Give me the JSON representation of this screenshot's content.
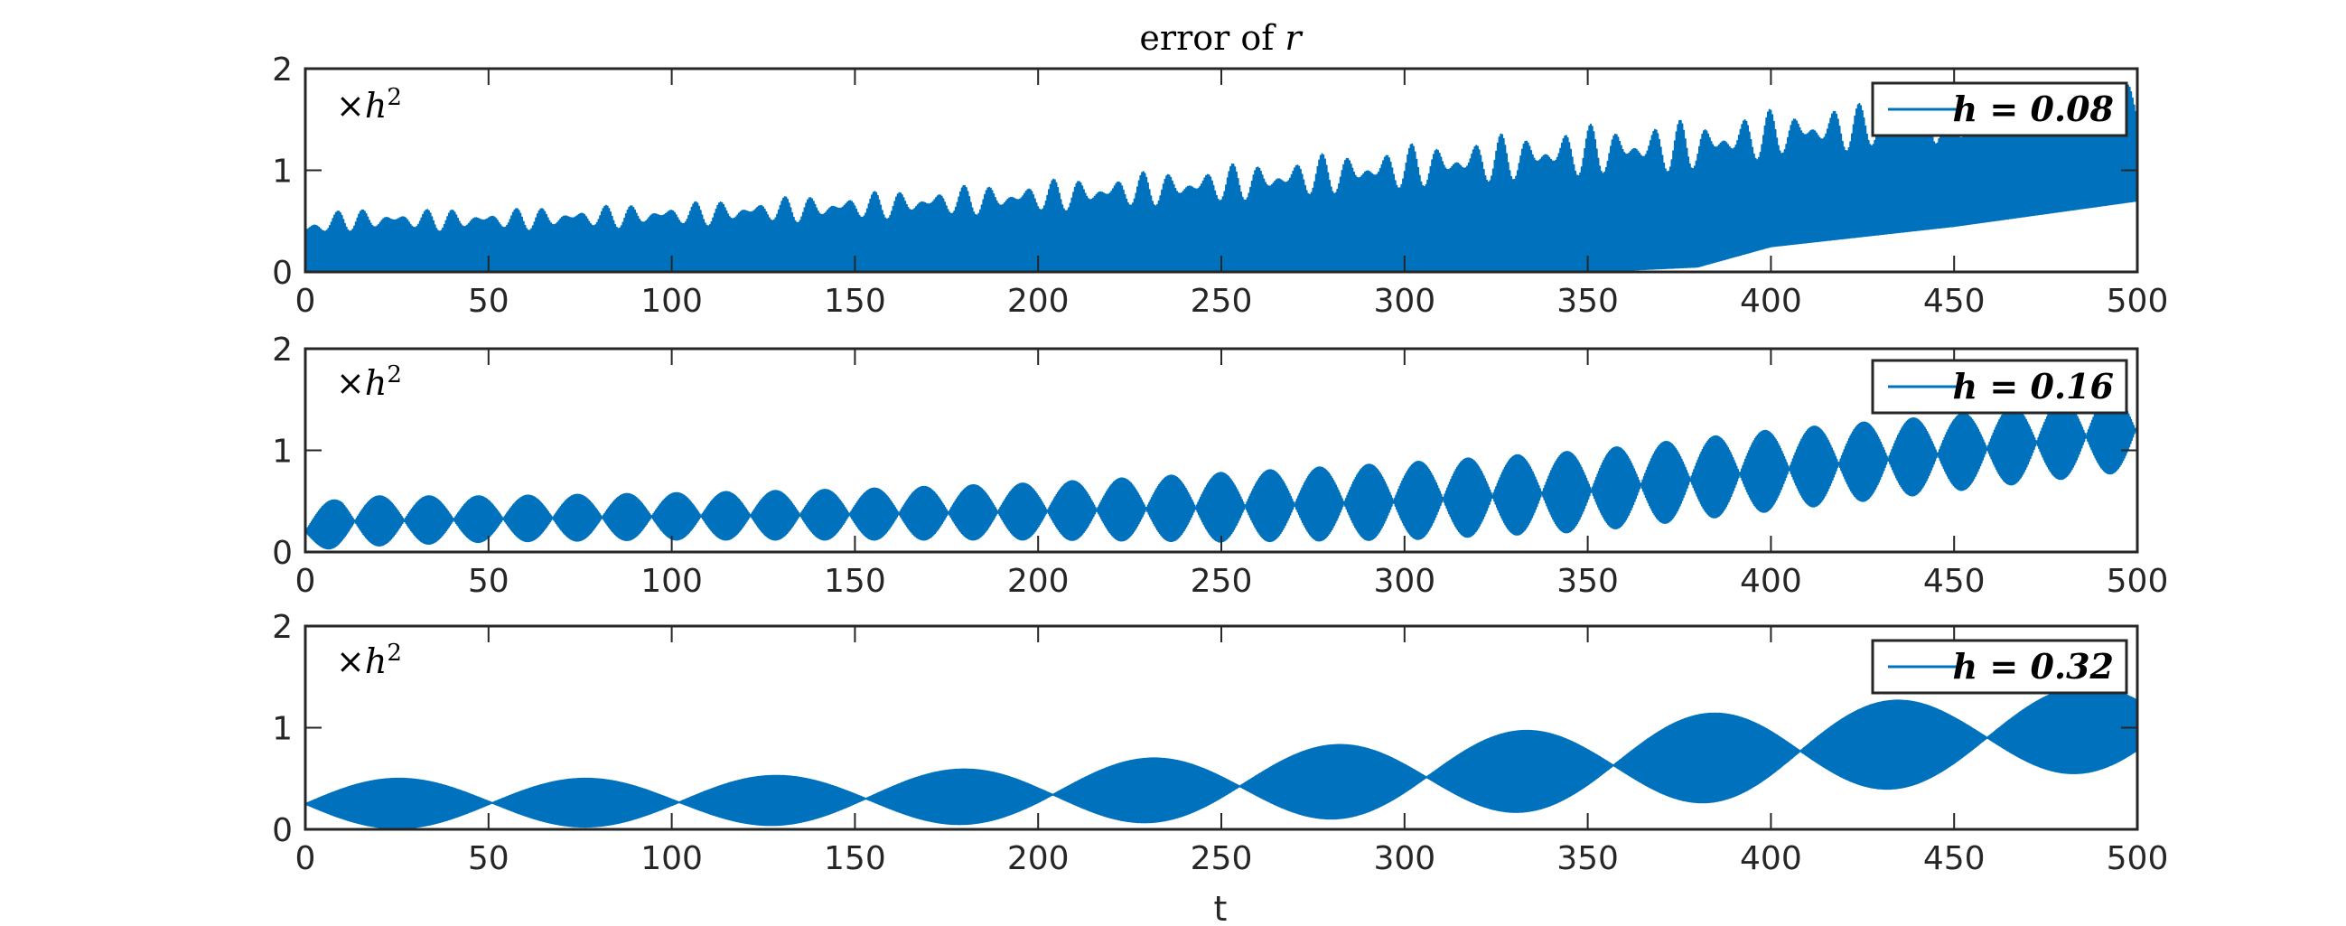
{
  "title": {
    "prefix": "error of ",
    "var": "r"
  },
  "scale_note": {
    "times": "×",
    "var": "h",
    "exp": "2"
  },
  "xlabel": "t",
  "x_ticks": [
    "0",
    "50",
    "100",
    "150",
    "200",
    "250",
    "300",
    "350",
    "400",
    "450",
    "500"
  ],
  "y_ticks": [
    "0",
    "1",
    "2"
  ],
  "colors": {
    "series": "#0072bd",
    "axes": "#262626"
  },
  "chart_data": [
    {
      "type": "line",
      "legend": "h = 0.08",
      "legend_label": "h = 0.08",
      "legend_placement": "top-right",
      "xlim": [
        0,
        500
      ],
      "ylim": [
        0,
        2
      ],
      "x_range": [
        0,
        500
      ],
      "envelope": {
        "t": [
          0,
          10,
          50,
          100,
          150,
          200,
          250,
          300,
          350,
          380,
          400,
          450,
          500
        ],
        "upper": [
          0.5,
          0.62,
          0.62,
          0.68,
          0.78,
          0.9,
          1.05,
          1.25,
          1.45,
          1.5,
          1.6,
          1.72,
          1.85
        ],
        "lower": [
          0,
          0,
          0,
          0,
          0,
          0,
          0,
          0,
          0,
          0.05,
          0.25,
          0.45,
          0.7
        ]
      }
    },
    {
      "type": "line",
      "legend": "h = 0.16",
      "legend_label": "h = 0.16",
      "legend_placement": "top-right",
      "xlim": [
        0,
        500
      ],
      "ylim": [
        0,
        2
      ],
      "x_range": [
        0,
        500
      ],
      "beat_period": 13.5,
      "envelope": {
        "t": [
          0,
          10,
          50,
          100,
          150,
          200,
          250,
          300,
          350,
          400,
          450,
          500
        ],
        "upper": [
          0.4,
          0.55,
          0.55,
          0.58,
          0.62,
          0.68,
          0.78,
          0.88,
          1.0,
          1.2,
          1.35,
          1.6
        ],
        "lower": [
          0.0,
          0.05,
          0.1,
          0.12,
          0.12,
          0.12,
          0.1,
          0.12,
          0.2,
          0.4,
          0.6,
          0.8
        ]
      }
    },
    {
      "type": "line",
      "legend": "h = 0.32",
      "legend_label": "h = 0.32",
      "legend_placement": "top-right",
      "xlim": [
        0,
        500
      ],
      "ylim": [
        0,
        2
      ],
      "x_range": [
        0,
        500
      ],
      "beat_period": 51,
      "envelope": {
        "t": [
          0,
          50,
          100,
          150,
          200,
          250,
          300,
          350,
          400,
          450,
          500
        ],
        "upper": [
          0.5,
          0.5,
          0.5,
          0.55,
          0.62,
          0.75,
          0.88,
          1.02,
          1.2,
          1.3,
          1.45
        ],
        "lower": [
          0.0,
          0.02,
          0.03,
          0.05,
          0.05,
          0.08,
          0.12,
          0.2,
          0.3,
          0.45,
          0.6
        ]
      }
    }
  ]
}
